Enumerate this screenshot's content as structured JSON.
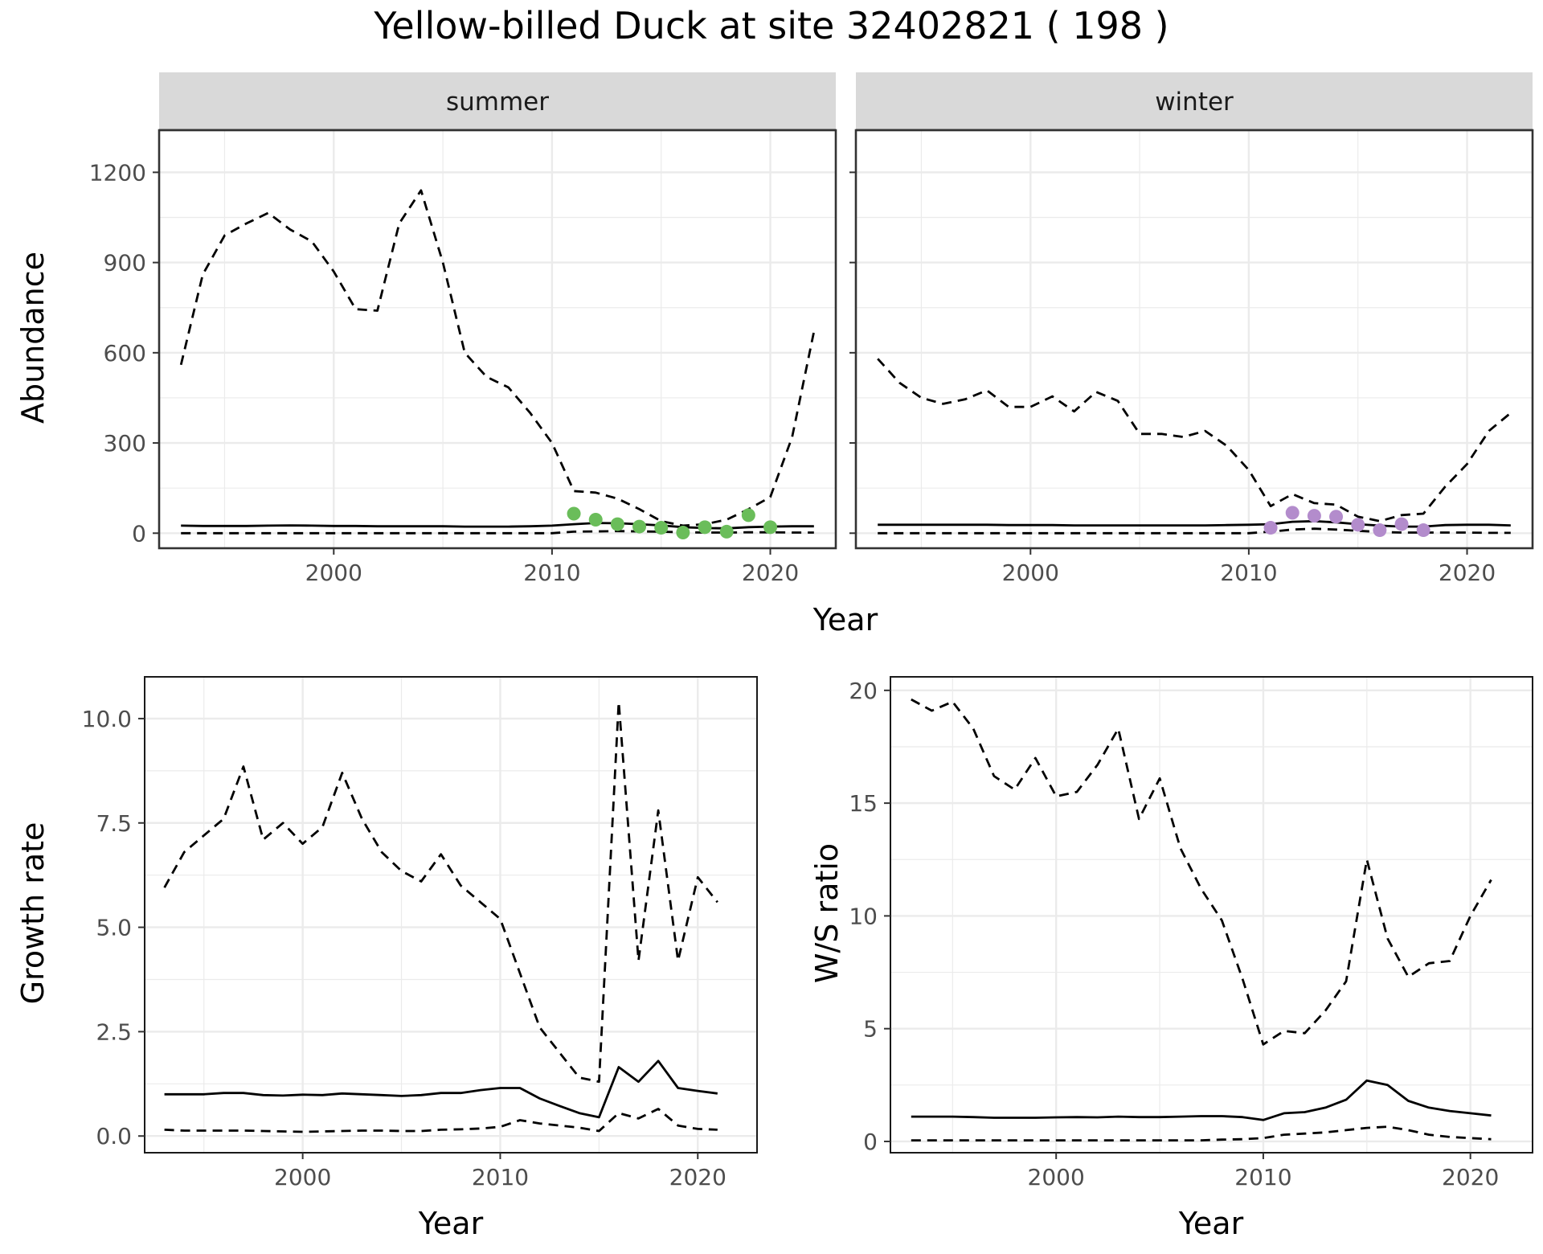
{
  "title": "Yellow-billed Duck at site 32402821 ( 198 )",
  "colors": {
    "summer_points": "#6abd5a",
    "winter_points": "#b38ccc",
    "line": "#000000",
    "strip": "#d9d9d9",
    "grid": "#ebebeb"
  },
  "chart_data": [
    {
      "type": "line",
      "panel": "summer",
      "strip_label": "summer",
      "xlabel": "Year",
      "ylabel": "Abundance",
      "xlim": [
        1992,
        2023
      ],
      "ylim": [
        -50,
        1340
      ],
      "x_ticks": [
        2000,
        2010,
        2020
      ],
      "y_ticks": [
        0,
        300,
        600,
        900,
        1200
      ],
      "x_tick_labels": [
        "2000",
        "2010",
        "2020"
      ],
      "y_tick_labels": [
        "0",
        "300",
        "600",
        "900",
        "1200"
      ],
      "years": [
        1993,
        1994,
        1995,
        1996,
        1997,
        1998,
        1999,
        2000,
        2001,
        2002,
        2003,
        2004,
        2005,
        2006,
        2007,
        2008,
        2009,
        2010,
        2011,
        2012,
        2013,
        2014,
        2015,
        2016,
        2017,
        2018,
        2019,
        2020,
        2021,
        2022
      ],
      "series": [
        {
          "style": "solid",
          "values": [
            25,
            24,
            24,
            24,
            25,
            26,
            25,
            24,
            24,
            23,
            23,
            23,
            23,
            22,
            22,
            22,
            23,
            25,
            30,
            34,
            33,
            30,
            26,
            20,
            17,
            16,
            20,
            22,
            23,
            23
          ]
        },
        {
          "style": "dashed",
          "values": [
            560,
            860,
            990,
            1030,
            1065,
            1010,
            970,
            870,
            745,
            740,
            1030,
            1140,
            900,
            600,
            520,
            485,
            400,
            300,
            140,
            135,
            115,
            80,
            40,
            25,
            30,
            45,
            80,
            120,
            320,
            670
          ]
        },
        {
          "style": "dashed",
          "values": [
            0,
            0,
            0,
            0,
            0,
            0,
            0,
            0,
            0,
            0,
            0,
            0,
            0,
            0,
            0,
            0,
            0,
            0,
            5,
            6,
            7,
            6,
            5,
            3,
            2,
            2,
            3,
            3,
            2,
            2
          ]
        }
      ],
      "points": {
        "x": [
          2011,
          2012,
          2013,
          2014,
          2015,
          2016,
          2017,
          2018,
          2019,
          2020
        ],
        "y": [
          65,
          45,
          30,
          22,
          18,
          2,
          20,
          5,
          60,
          20
        ]
      }
    },
    {
      "type": "line",
      "panel": "winter",
      "strip_label": "winter",
      "xlabel": "Year",
      "ylabel": "",
      "xlim": [
        1992,
        2023
      ],
      "ylim": [
        -50,
        1340
      ],
      "x_ticks": [
        2000,
        2010,
        2020
      ],
      "y_ticks": [
        0,
        300,
        600,
        900,
        1200
      ],
      "x_tick_labels": [
        "2000",
        "2010",
        "2020"
      ],
      "y_tick_labels": [],
      "years": [
        1993,
        1994,
        1995,
        1996,
        1997,
        1998,
        1999,
        2000,
        2001,
        2002,
        2003,
        2004,
        2005,
        2006,
        2007,
        2008,
        2009,
        2010,
        2011,
        2012,
        2013,
        2014,
        2015,
        2016,
        2017,
        2018,
        2019,
        2020,
        2021,
        2022
      ],
      "series": [
        {
          "style": "solid",
          "values": [
            28,
            28,
            28,
            28,
            28,
            28,
            27,
            27,
            27,
            26,
            26,
            26,
            26,
            26,
            26,
            26,
            27,
            28,
            30,
            38,
            40,
            36,
            30,
            25,
            22,
            22,
            27,
            28,
            28,
            26
          ]
        },
        {
          "style": "dashed",
          "values": [
            580,
            500,
            450,
            430,
            445,
            475,
            420,
            420,
            455,
            405,
            470,
            440,
            330,
            330,
            320,
            340,
            290,
            210,
            90,
            130,
            100,
            95,
            55,
            40,
            60,
            65,
            155,
            230,
            340,
            400
          ]
        },
        {
          "style": "dashed",
          "values": [
            0,
            0,
            0,
            0,
            0,
            0,
            0,
            0,
            0,
            0,
            0,
            0,
            0,
            0,
            0,
            0,
            0,
            0,
            5,
            12,
            15,
            12,
            8,
            4,
            2,
            2,
            2,
            2,
            1,
            1
          ]
        }
      ],
      "points": {
        "x": [
          2011,
          2012,
          2013,
          2014,
          2015,
          2016,
          2017,
          2018
        ],
        "y": [
          18,
          68,
          58,
          55,
          28,
          10,
          30,
          10
        ]
      }
    },
    {
      "type": "line",
      "panel": "growth",
      "strip_label": "",
      "xlabel": "Year",
      "ylabel": "Growth rate",
      "xlim": [
        1992,
        2023
      ],
      "ylim": [
        -0.4,
        11.0
      ],
      "x_ticks": [
        2000,
        2010,
        2020
      ],
      "y_ticks": [
        0.0,
        2.5,
        5.0,
        7.5,
        10.0
      ],
      "x_tick_labels": [
        "2000",
        "2010",
        "2020"
      ],
      "y_tick_labels": [
        "0.0",
        "2.5",
        "5.0",
        "7.5",
        "10.0"
      ],
      "years": [
        1993,
        1994,
        1995,
        1996,
        1997,
        1998,
        1999,
        2000,
        2001,
        2002,
        2003,
        2004,
        2005,
        2006,
        2007,
        2008,
        2009,
        2010,
        2011,
        2012,
        2013,
        2014,
        2015,
        2016,
        2017,
        2018,
        2019,
        2020,
        2021
      ],
      "series": [
        {
          "style": "solid",
          "values": [
            1.0,
            1.0,
            1.0,
            1.03,
            1.03,
            0.98,
            0.97,
            0.99,
            0.98,
            1.02,
            1.0,
            0.98,
            0.96,
            0.98,
            1.03,
            1.03,
            1.1,
            1.15,
            1.15,
            0.9,
            0.72,
            0.55,
            0.45,
            1.65,
            1.3,
            1.8,
            1.15,
            1.08,
            1.02
          ]
        },
        {
          "style": "dashed",
          "values": [
            5.95,
            6.8,
            7.2,
            7.6,
            8.85,
            7.1,
            7.5,
            7.0,
            7.4,
            8.7,
            7.6,
            6.8,
            6.35,
            6.1,
            6.75,
            6.0,
            5.6,
            5.2,
            3.9,
            2.6,
            2.0,
            1.4,
            1.3,
            10.4,
            4.2,
            7.8,
            4.2,
            6.2,
            5.6
          ]
        },
        {
          "style": "dashed",
          "values": [
            0.15,
            0.13,
            0.13,
            0.13,
            0.13,
            0.12,
            0.11,
            0.1,
            0.11,
            0.12,
            0.13,
            0.13,
            0.12,
            0.12,
            0.15,
            0.16,
            0.18,
            0.22,
            0.38,
            0.3,
            0.25,
            0.2,
            0.12,
            0.55,
            0.42,
            0.65,
            0.25,
            0.17,
            0.15
          ]
        }
      ]
    },
    {
      "type": "line",
      "panel": "ws_ratio",
      "strip_label": "",
      "xlabel": "Year",
      "ylabel": "W/S ratio",
      "xlim": [
        1992,
        2023
      ],
      "ylim": [
        -0.5,
        20.6
      ],
      "x_ticks": [
        2000,
        2010,
        2020
      ],
      "y_ticks": [
        0,
        5,
        10,
        15,
        20
      ],
      "x_tick_labels": [
        "2000",
        "2010",
        "2020"
      ],
      "y_tick_labels": [
        "0",
        "5",
        "10",
        "15",
        "20"
      ],
      "years": [
        1993,
        1994,
        1995,
        1996,
        1997,
        1998,
        1999,
        2000,
        2001,
        2002,
        2003,
        2004,
        2005,
        2006,
        2007,
        2008,
        2009,
        2010,
        2011,
        2012,
        2013,
        2014,
        2015,
        2016,
        2017,
        2018,
        2019,
        2020,
        2021
      ],
      "series": [
        {
          "style": "solid",
          "values": [
            1.1,
            1.1,
            1.1,
            1.08,
            1.05,
            1.05,
            1.05,
            1.07,
            1.08,
            1.07,
            1.1,
            1.08,
            1.08,
            1.1,
            1.12,
            1.12,
            1.08,
            0.95,
            1.25,
            1.3,
            1.5,
            1.85,
            2.7,
            2.5,
            1.8,
            1.5,
            1.35,
            1.25,
            1.15
          ]
        },
        {
          "style": "dashed",
          "values": [
            19.6,
            19.1,
            19.5,
            18.3,
            16.2,
            15.6,
            17.0,
            15.3,
            15.5,
            16.7,
            18.3,
            14.3,
            16.1,
            13.0,
            11.2,
            9.8,
            7.2,
            4.3,
            4.9,
            4.8,
            5.8,
            7.1,
            12.5,
            9.0,
            7.3,
            7.9,
            8.0,
            10.0,
            11.6
          ]
        },
        {
          "style": "dashed",
          "values": [
            0.05,
            0.05,
            0.05,
            0.05,
            0.05,
            0.05,
            0.05,
            0.05,
            0.05,
            0.05,
            0.05,
            0.05,
            0.05,
            0.05,
            0.05,
            0.08,
            0.1,
            0.15,
            0.3,
            0.35,
            0.4,
            0.5,
            0.6,
            0.65,
            0.5,
            0.3,
            0.2,
            0.15,
            0.1
          ]
        }
      ]
    }
  ]
}
